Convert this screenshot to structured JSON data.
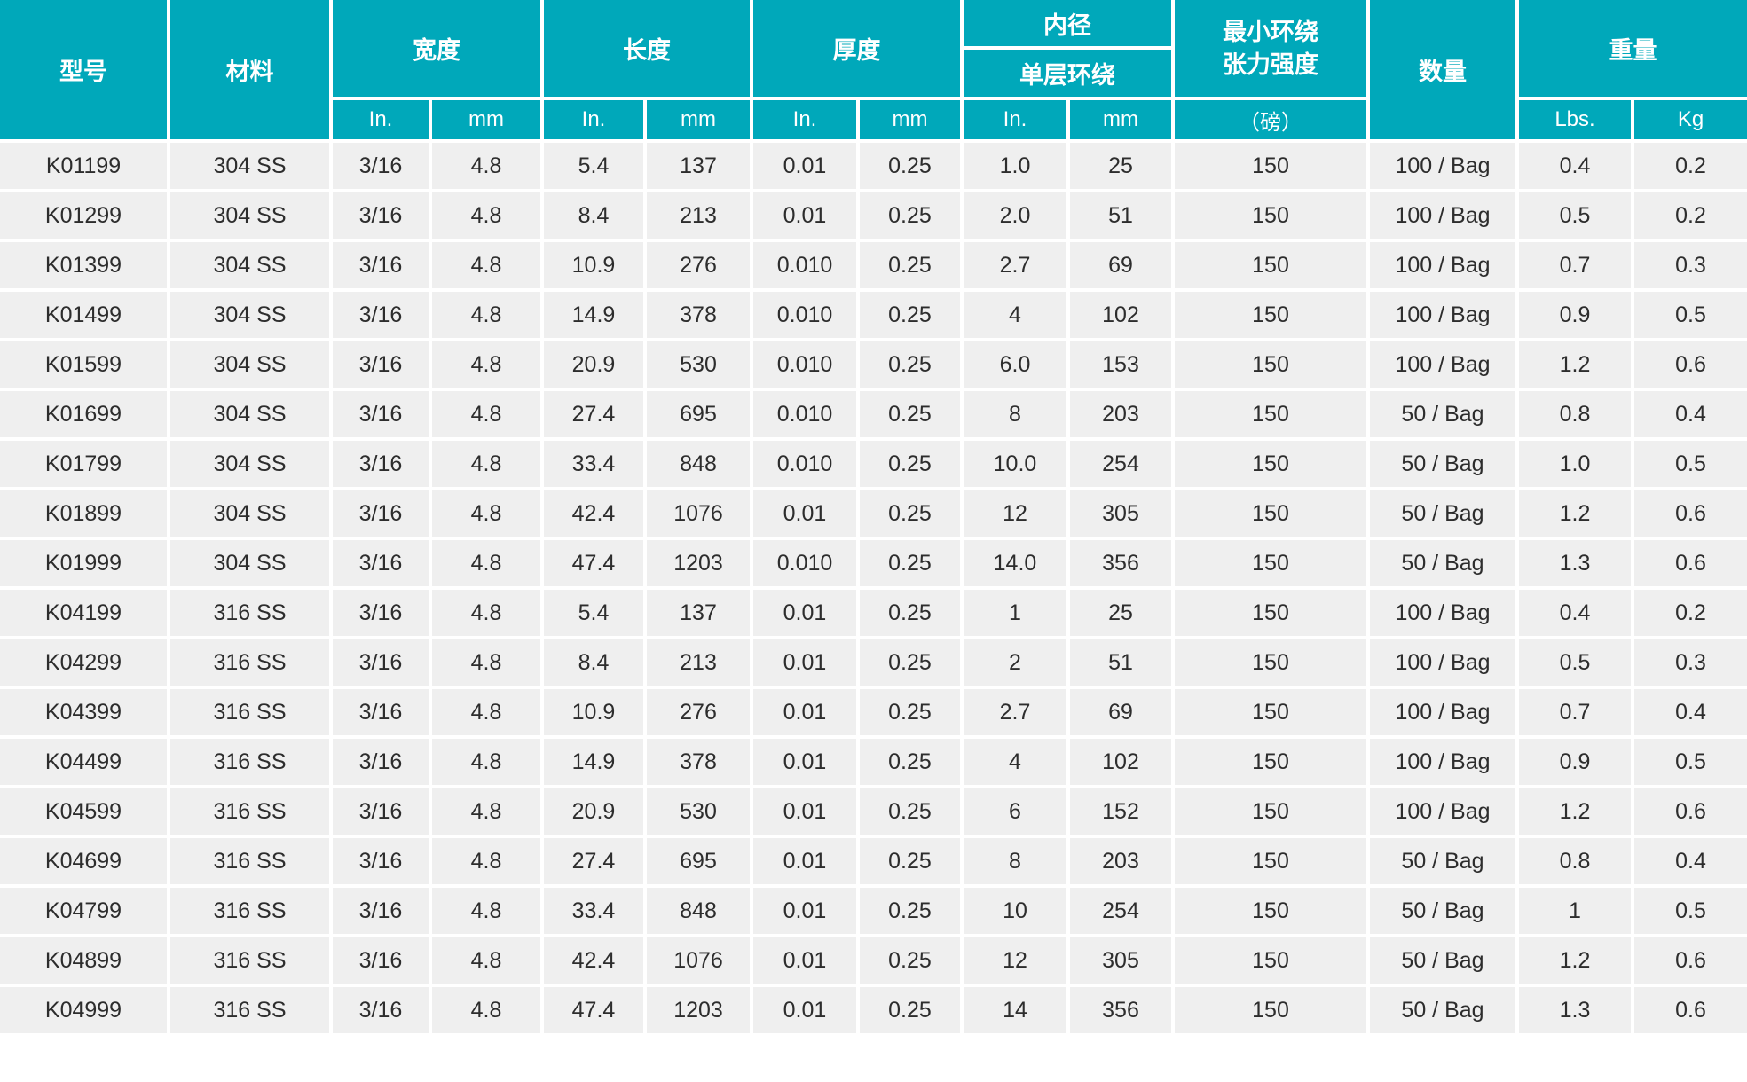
{
  "colors": {
    "header_bg": "#00a8ba",
    "header_text": "#ffffff",
    "row_bg": "#efefef",
    "body_text": "#2d2d2d",
    "gridline": "#ffffff"
  },
  "table": {
    "header": {
      "model": "型号",
      "material": "材料",
      "width": "宽度",
      "length": "长度",
      "thickness": "厚度",
      "inner_diameter": "内径",
      "single_wrap": "单层环绕",
      "min_strength": "最小环绕\n张力强度",
      "quantity": "数量",
      "weight": "重量",
      "unit_in": "In.",
      "unit_mm": "mm",
      "unit_pound": "（磅）",
      "unit_lbs": "Lbs.",
      "unit_kg": "Kg"
    },
    "column_keys": [
      "model",
      "material",
      "width-in",
      "width-mm",
      "length-in",
      "length-mm",
      "thickness-in",
      "thickness-mm",
      "inner-diameter-in",
      "inner-diameter-mm",
      "strength-lbs",
      "quantity",
      "weight-lbs",
      "weight-kg"
    ],
    "rows": [
      [
        "K01199",
        "304 SS",
        "3/16",
        "4.8",
        "5.4",
        "137",
        "0.01",
        "0.25",
        "1.0",
        "25",
        "150",
        "100 / Bag",
        "0.4",
        "0.2"
      ],
      [
        "K01299",
        "304 SS",
        "3/16",
        "4.8",
        "8.4",
        "213",
        "0.01",
        "0.25",
        "2.0",
        "51",
        "150",
        "100 / Bag",
        "0.5",
        "0.2"
      ],
      [
        "K01399",
        "304 SS",
        "3/16",
        "4.8",
        "10.9",
        "276",
        "0.010",
        "0.25",
        "2.7",
        "69",
        "150",
        "100 / Bag",
        "0.7",
        "0.3"
      ],
      [
        "K01499",
        "304 SS",
        "3/16",
        "4.8",
        "14.9",
        "378",
        "0.010",
        "0.25",
        "4",
        "102",
        "150",
        "100 / Bag",
        "0.9",
        "0.5"
      ],
      [
        "K01599",
        "304 SS",
        "3/16",
        "4.8",
        "20.9",
        "530",
        "0.010",
        "0.25",
        "6.0",
        "153",
        "150",
        "100 / Bag",
        "1.2",
        "0.6"
      ],
      [
        "K01699",
        "304 SS",
        "3/16",
        "4.8",
        "27.4",
        "695",
        "0.010",
        "0.25",
        "8",
        "203",
        "150",
        "50 / Bag",
        "0.8",
        "0.4"
      ],
      [
        "K01799",
        "304 SS",
        "3/16",
        "4.8",
        "33.4",
        "848",
        "0.010",
        "0.25",
        "10.0",
        "254",
        "150",
        "50 / Bag",
        "1.0",
        "0.5"
      ],
      [
        "K01899",
        "304 SS",
        "3/16",
        "4.8",
        "42.4",
        "1076",
        "0.01",
        "0.25",
        "12",
        "305",
        "150",
        "50 / Bag",
        "1.2",
        "0.6"
      ],
      [
        "K01999",
        "304 SS",
        "3/16",
        "4.8",
        "47.4",
        "1203",
        "0.010",
        "0.25",
        "14.0",
        "356",
        "150",
        "50 / Bag",
        "1.3",
        "0.6"
      ],
      [
        "K04199",
        "316 SS",
        "3/16",
        "4.8",
        "5.4",
        "137",
        "0.01",
        "0.25",
        "1",
        "25",
        "150",
        "100 / Bag",
        "0.4",
        "0.2"
      ],
      [
        "K04299",
        "316 SS",
        "3/16",
        "4.8",
        "8.4",
        "213",
        "0.01",
        "0.25",
        "2",
        "51",
        "150",
        "100 / Bag",
        "0.5",
        "0.3"
      ],
      [
        "K04399",
        "316 SS",
        "3/16",
        "4.8",
        "10.9",
        "276",
        "0.01",
        "0.25",
        "2.7",
        "69",
        "150",
        "100 / Bag",
        "0.7",
        "0.4"
      ],
      [
        "K04499",
        "316 SS",
        "3/16",
        "4.8",
        "14.9",
        "378",
        "0.01",
        "0.25",
        "4",
        "102",
        "150",
        "100 / Bag",
        "0.9",
        "0.5"
      ],
      [
        "K04599",
        "316 SS",
        "3/16",
        "4.8",
        "20.9",
        "530",
        "0.01",
        "0.25",
        "6",
        "152",
        "150",
        "100 / Bag",
        "1.2",
        "0.6"
      ],
      [
        "K04699",
        "316 SS",
        "3/16",
        "4.8",
        "27.4",
        "695",
        "0.01",
        "0.25",
        "8",
        "203",
        "150",
        "50 / Bag",
        "0.8",
        "0.4"
      ],
      [
        "K04799",
        "316 SS",
        "3/16",
        "4.8",
        "33.4",
        "848",
        "0.01",
        "0.25",
        "10",
        "254",
        "150",
        "50 / Bag",
        "1",
        "0.5"
      ],
      [
        "K04899",
        "316 SS",
        "3/16",
        "4.8",
        "42.4",
        "1076",
        "0.01",
        "0.25",
        "12",
        "305",
        "150",
        "50 / Bag",
        "1.2",
        "0.6"
      ],
      [
        "K04999",
        "316 SS",
        "3/16",
        "4.8",
        "47.4",
        "1203",
        "0.01",
        "0.25",
        "14",
        "356",
        "150",
        "50 / Bag",
        "1.3",
        "0.6"
      ]
    ]
  }
}
